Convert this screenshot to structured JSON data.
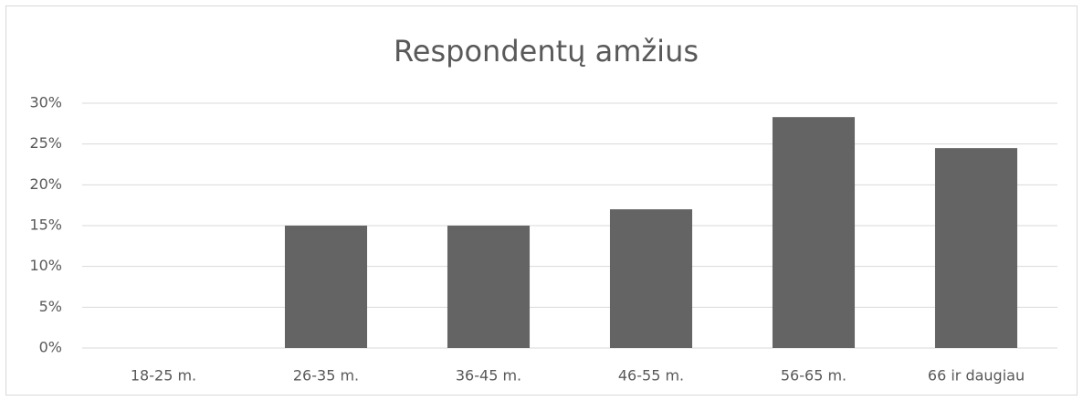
{
  "chart_data": {
    "type": "bar",
    "title": "Respondentų amžius",
    "categories": [
      "18-25 m.",
      "26-35 m.",
      "36-45 m.",
      "46-55 m.",
      "56-65 m.",
      "66 ir daugiau"
    ],
    "values": [
      0,
      15,
      15,
      17,
      28.3,
      24.5
    ],
    "color": "#646464",
    "ylim": [
      0,
      30
    ],
    "yticks": [
      {
        "value": 0,
        "label": "0%"
      },
      {
        "value": 5,
        "label": "5%"
      },
      {
        "value": 10,
        "label": "10%"
      },
      {
        "value": 15,
        "label": "15%"
      },
      {
        "value": 20,
        "label": "20%"
      },
      {
        "value": 25,
        "label": "25%"
      },
      {
        "value": 30,
        "label": "30%"
      }
    ],
    "grid": true
  }
}
